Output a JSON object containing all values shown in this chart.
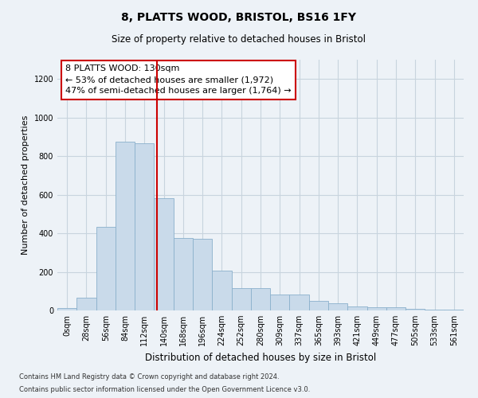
{
  "title": "8, PLATTS WOOD, BRISTOL, BS16 1FY",
  "subtitle": "Size of property relative to detached houses in Bristol",
  "xlabel": "Distribution of detached houses by size in Bristol",
  "ylabel": "Number of detached properties",
  "bin_labels": [
    "0sqm",
    "28sqm",
    "56sqm",
    "84sqm",
    "112sqm",
    "140sqm",
    "168sqm",
    "196sqm",
    "224sqm",
    "252sqm",
    "280sqm",
    "309sqm",
    "337sqm",
    "365sqm",
    "393sqm",
    "421sqm",
    "449sqm",
    "477sqm",
    "505sqm",
    "533sqm",
    "561sqm"
  ],
  "bar_values": [
    12,
    65,
    435,
    875,
    865,
    580,
    375,
    370,
    205,
    115,
    115,
    82,
    82,
    50,
    38,
    22,
    15,
    15,
    8,
    4,
    4
  ],
  "bar_color": "#c9daea",
  "bar_edge_color": "#8ab0cc",
  "red_line_x": 4.64,
  "red_line_color": "#cc0000",
  "ylim": [
    0,
    1300
  ],
  "yticks": [
    0,
    200,
    400,
    600,
    800,
    1000,
    1200
  ],
  "annotation_text": "8 PLATTS WOOD: 130sqm\n← 53% of detached houses are smaller (1,972)\n47% of semi-detached houses are larger (1,764) →",
  "annotation_box_color": "#ffffff",
  "annotation_box_edge_color": "#cc0000",
  "footnote1": "Contains HM Land Registry data © Crown copyright and database right 2024.",
  "footnote2": "Contains public sector information licensed under the Open Government Licence v3.0.",
  "background_color": "#edf2f7",
  "grid_color": "#c8d4de",
  "title_fontsize": 10,
  "subtitle_fontsize": 8.5,
  "ylabel_fontsize": 8,
  "xlabel_fontsize": 8.5,
  "tick_fontsize": 7,
  "annot_fontsize": 8,
  "footnote_fontsize": 6
}
